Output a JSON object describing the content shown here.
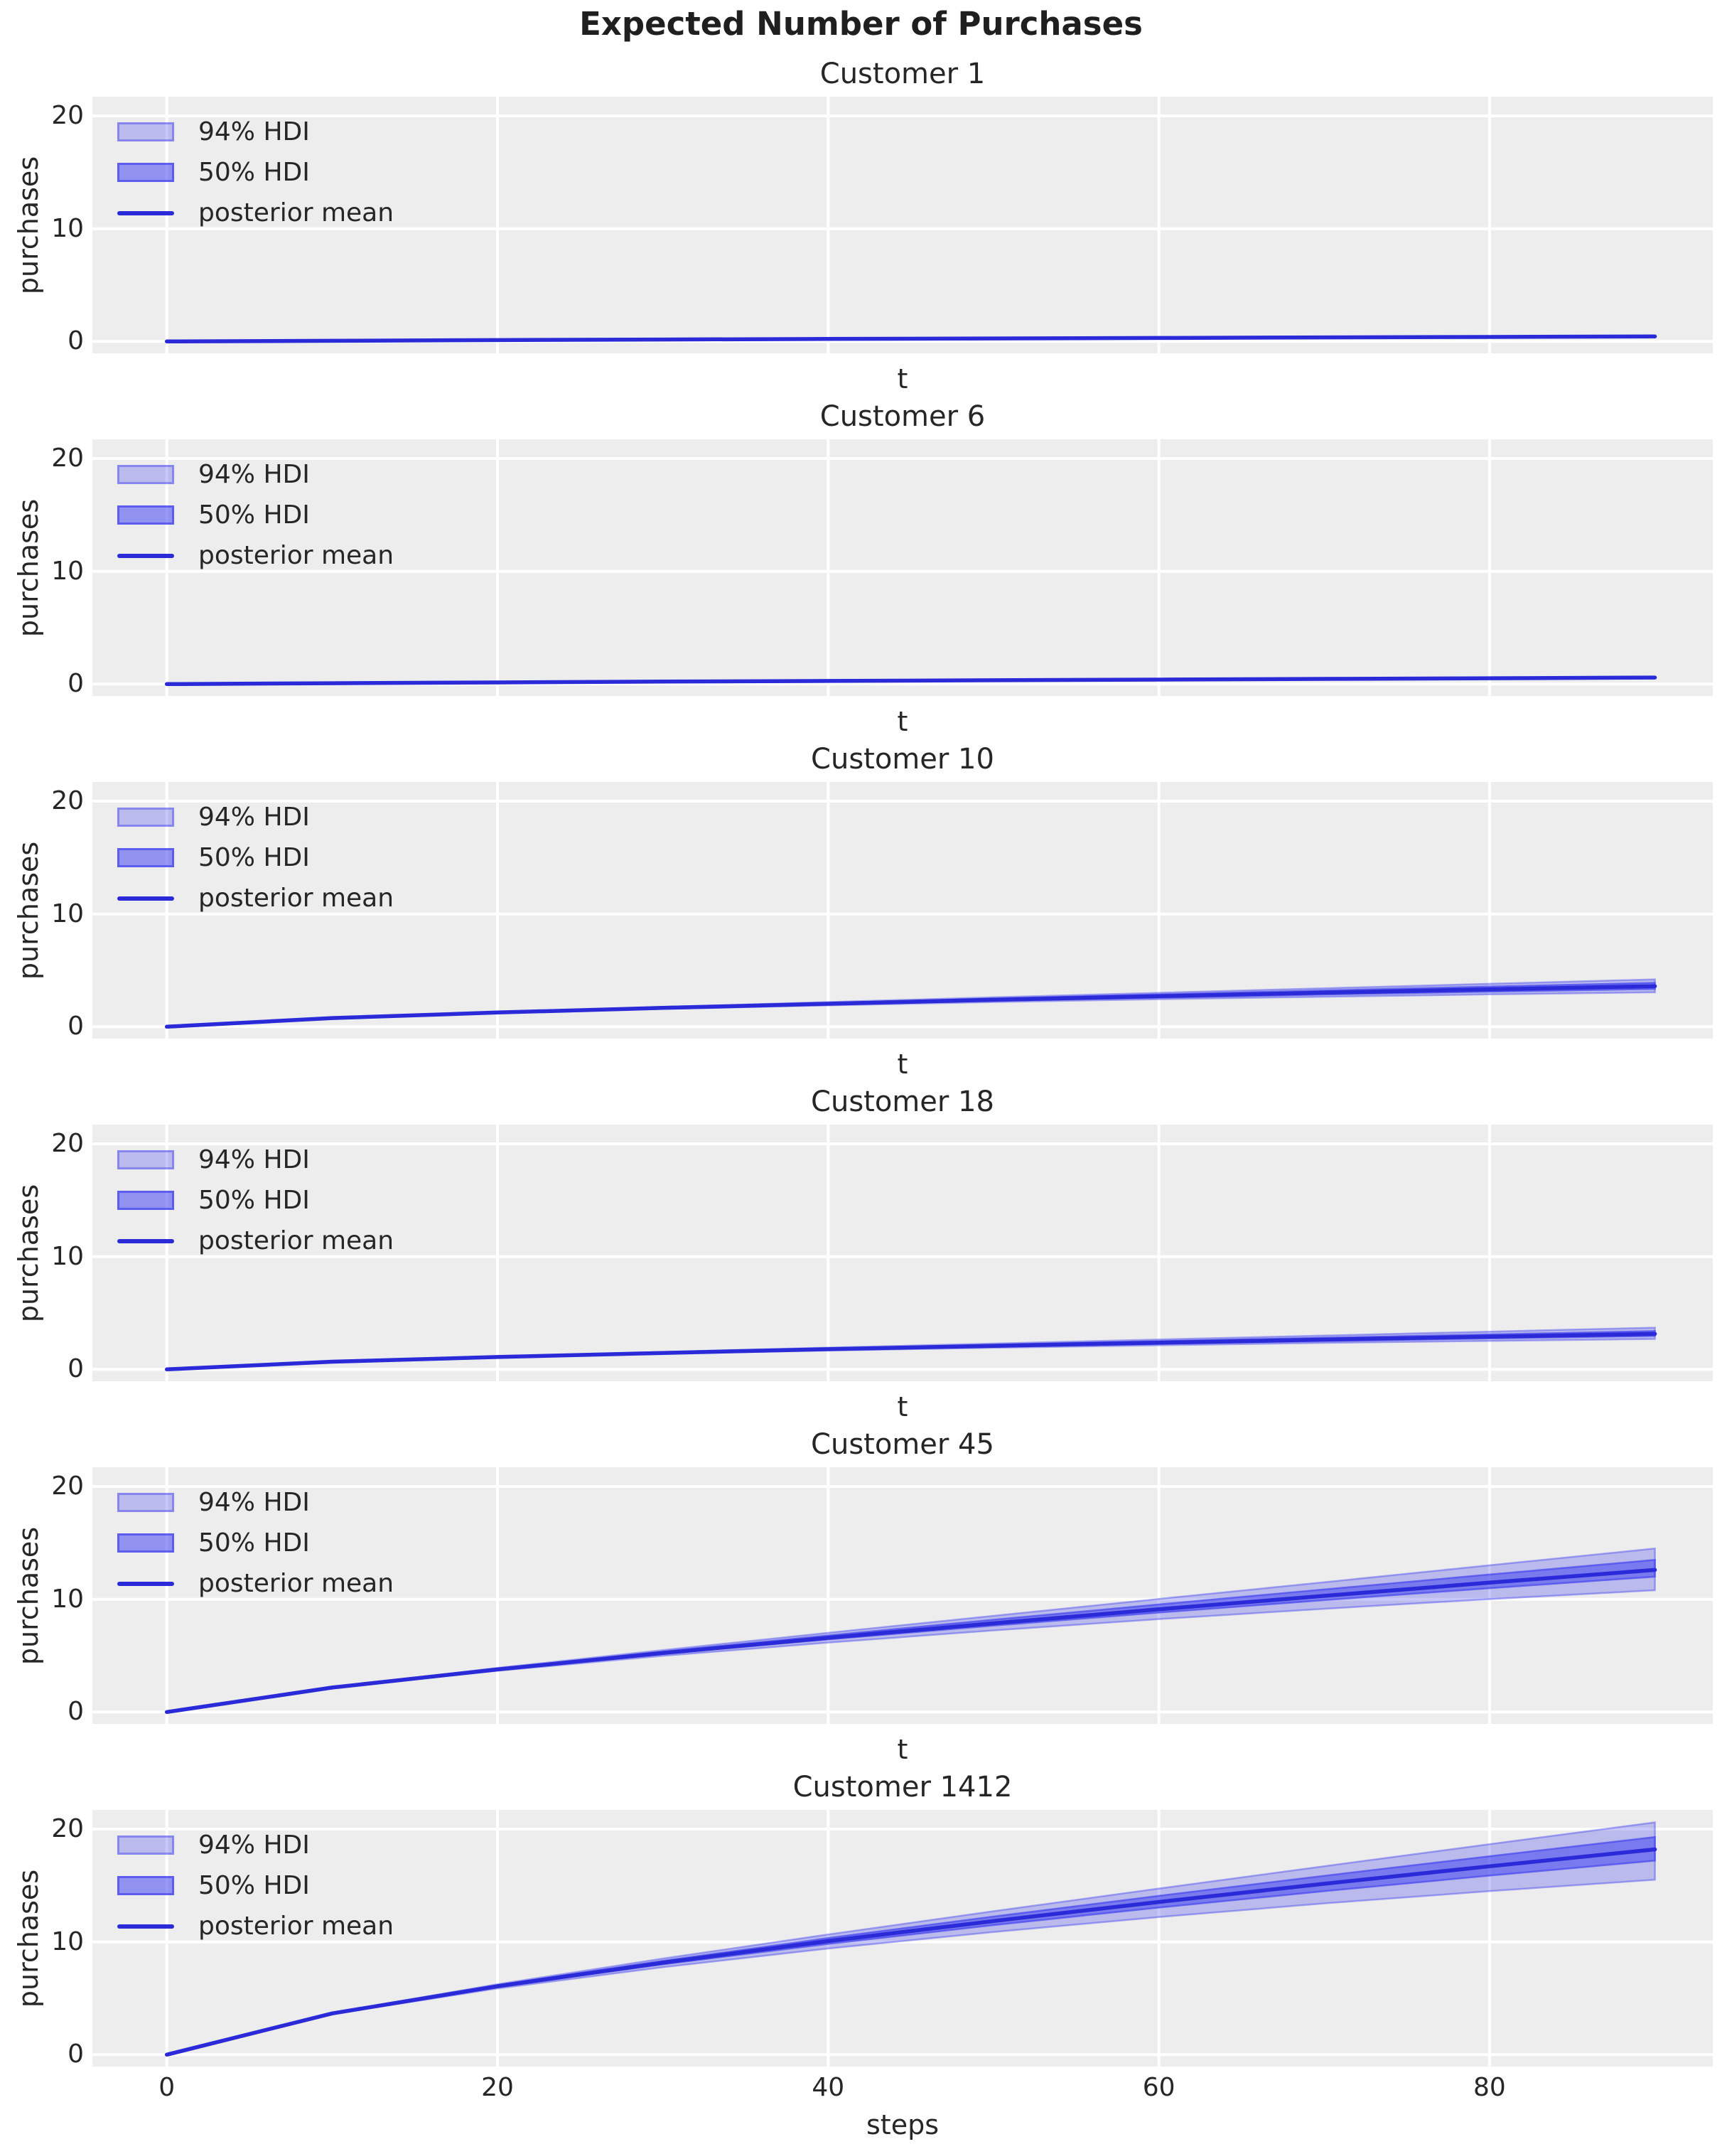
{
  "figure": {
    "suptitle": "Expected Number of Purchases",
    "colors": {
      "mean_line": "#2a2ad8",
      "hdi_94_fill": "rgba(70,70,240,0.30)",
      "hdi_94_edge": "rgba(70,70,240,0.45)",
      "hdi_50_fill": "rgba(70,70,240,0.55)",
      "hdi_50_edge": "rgba(70,70,240,0.70)",
      "plot_bg": "#ededed",
      "grid": "#ffffff",
      "text": "#262626"
    }
  },
  "chart_data": {
    "type": "line",
    "subtype": "posterior-mean-with-hdi-bands",
    "x_ticks": [
      0,
      20,
      40,
      60,
      80
    ],
    "y_ticks": [
      20,
      10,
      0
    ],
    "xlim": [
      -4.5,
      93.5
    ],
    "ylim": [
      -1.05,
      21.7
    ],
    "grid": "on",
    "legend_position": "upper left",
    "legend": [
      {
        "label": "94% HDI"
      },
      {
        "label": "50% HDI"
      },
      {
        "label": "posterior mean"
      }
    ],
    "subplots": [
      {
        "title": "Customer 1",
        "xlabel": "t",
        "ylabel": "purchases",
        "x": [
          0,
          10,
          20,
          30,
          40,
          50,
          60,
          70,
          80,
          90
        ],
        "mean": [
          0,
          0.06,
          0.12,
          0.17,
          0.22,
          0.27,
          0.31,
          0.36,
          0.4,
          0.45
        ],
        "hdi94_upper": [
          0,
          0.06,
          0.12,
          0.18,
          0.23,
          0.28,
          0.33,
          0.39,
          0.44,
          0.5
        ],
        "hdi94_lower": [
          0,
          0.06,
          0.11,
          0.16,
          0.21,
          0.25,
          0.29,
          0.33,
          0.36,
          0.4
        ],
        "hdi50_upper": [
          0,
          0.06,
          0.12,
          0.17,
          0.22,
          0.27,
          0.32,
          0.37,
          0.41,
          0.46
        ],
        "hdi50_lower": [
          0,
          0.06,
          0.12,
          0.17,
          0.22,
          0.26,
          0.3,
          0.35,
          0.39,
          0.44
        ]
      },
      {
        "title": "Customer 6",
        "xlabel": "t",
        "ylabel": "purchases",
        "x": [
          0,
          10,
          20,
          30,
          40,
          50,
          60,
          70,
          80,
          90
        ],
        "mean": [
          0,
          0.08,
          0.15,
          0.22,
          0.28,
          0.34,
          0.4,
          0.46,
          0.52,
          0.58
        ],
        "hdi94_upper": [
          0,
          0.08,
          0.16,
          0.23,
          0.3,
          0.36,
          0.43,
          0.5,
          0.57,
          0.65
        ],
        "hdi94_lower": [
          0,
          0.08,
          0.15,
          0.21,
          0.27,
          0.32,
          0.37,
          0.42,
          0.47,
          0.51
        ],
        "hdi50_upper": [
          0,
          0.08,
          0.15,
          0.22,
          0.29,
          0.35,
          0.41,
          0.47,
          0.54,
          0.6
        ],
        "hdi50_lower": [
          0,
          0.08,
          0.15,
          0.22,
          0.28,
          0.33,
          0.39,
          0.45,
          0.5,
          0.56
        ]
      },
      {
        "title": "Customer 10",
        "xlabel": "t",
        "ylabel": "purchases",
        "x": [
          0,
          10,
          20,
          30,
          40,
          50,
          60,
          70,
          80,
          90
        ],
        "mean": [
          0,
          0.77,
          1.26,
          1.67,
          2.04,
          2.39,
          2.71,
          3.02,
          3.32,
          3.6
        ],
        "hdi94_upper": [
          0,
          0.79,
          1.3,
          1.76,
          2.19,
          2.61,
          3.01,
          3.41,
          3.81,
          4.2
        ],
        "hdi94_lower": [
          0,
          0.76,
          1.22,
          1.58,
          1.9,
          2.19,
          2.44,
          2.66,
          2.87,
          3.05
        ],
        "hdi50_upper": [
          0,
          0.78,
          1.28,
          1.71,
          2.12,
          2.5,
          2.86,
          3.22,
          3.56,
          3.9
        ],
        "hdi50_lower": [
          0,
          0.77,
          1.24,
          1.63,
          1.98,
          2.3,
          2.58,
          2.86,
          3.11,
          3.35
        ]
      },
      {
        "title": "Customer 18",
        "xlabel": "t",
        "ylabel": "purchases",
        "x": [
          0,
          10,
          20,
          30,
          40,
          50,
          60,
          70,
          80,
          90
        ],
        "mean": [
          0,
          0.68,
          1.1,
          1.46,
          1.79,
          2.09,
          2.37,
          2.64,
          2.9,
          3.15
        ],
        "hdi94_upper": [
          0,
          0.69,
          1.14,
          1.55,
          1.93,
          2.29,
          2.65,
          3.0,
          3.35,
          3.7
        ],
        "hdi94_lower": [
          0,
          0.67,
          1.07,
          1.39,
          1.68,
          1.92,
          2.14,
          2.35,
          2.53,
          2.7
        ],
        "hdi50_upper": [
          0,
          0.69,
          1.12,
          1.5,
          1.85,
          2.18,
          2.5,
          2.8,
          3.1,
          3.4
        ],
        "hdi50_lower": [
          0,
          0.68,
          1.09,
          1.43,
          1.74,
          2.02,
          2.28,
          2.52,
          2.75,
          2.97
        ]
      },
      {
        "title": "Customer 45",
        "xlabel": "t",
        "ylabel": "purchases",
        "x": [
          0,
          10,
          20,
          30,
          40,
          50,
          60,
          70,
          80,
          90
        ],
        "mean": [
          0,
          2.17,
          3.78,
          5.23,
          6.58,
          7.87,
          9.11,
          10.3,
          11.47,
          12.6
        ],
        "hdi94_upper": [
          0,
          2.21,
          3.91,
          5.49,
          7.02,
          8.53,
          10.03,
          11.51,
          13.01,
          14.5
        ],
        "hdi94_lower": [
          0,
          2.14,
          3.66,
          4.98,
          6.16,
          7.24,
          8.24,
          9.15,
          10.01,
          10.8
        ],
        "hdi50_upper": [
          0,
          2.19,
          3.84,
          5.35,
          6.79,
          8.18,
          9.54,
          10.87,
          12.19,
          13.49
        ],
        "hdi50_lower": [
          0,
          2.16,
          3.74,
          5.15,
          6.44,
          7.66,
          8.82,
          9.92,
          10.98,
          12.0
        ]
      },
      {
        "title": "Customer 1412",
        "xlabel": "steps",
        "ylabel": "purchases",
        "x": [
          0,
          10,
          20,
          30,
          40,
          50,
          60,
          70,
          80,
          90
        ],
        "mean": [
          0,
          3.66,
          6.07,
          8.16,
          10.07,
          11.85,
          13.54,
          15.15,
          16.7,
          18.2
        ],
        "hdi94_upper": [
          0,
          3.71,
          6.25,
          8.52,
          10.66,
          12.72,
          14.73,
          16.71,
          18.66,
          20.6
        ],
        "hdi94_lower": [
          0,
          3.6,
          5.87,
          7.76,
          9.41,
          10.88,
          12.2,
          13.41,
          14.5,
          15.51
        ],
        "hdi50_upper": [
          0,
          3.68,
          6.15,
          8.32,
          10.34,
          12.25,
          14.08,
          15.86,
          17.59,
          19.29
        ],
        "hdi50_lower": [
          0,
          3.64,
          6.0,
          8.01,
          9.82,
          11.49,
          13.04,
          14.5,
          15.88,
          17.2
        ]
      }
    ]
  }
}
